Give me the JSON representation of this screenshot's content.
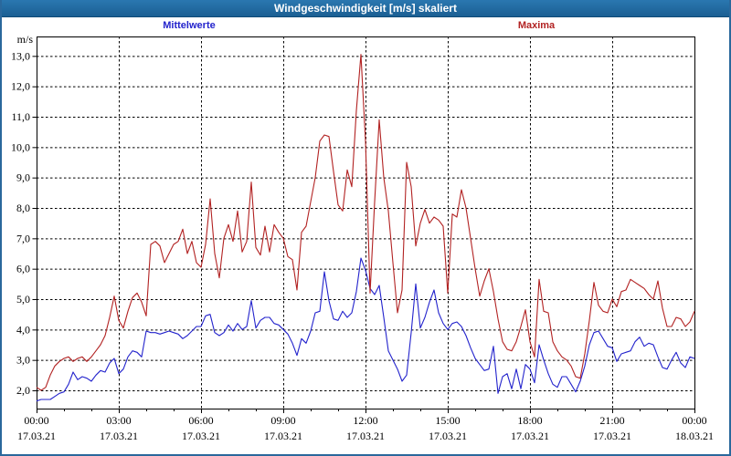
{
  "window": {
    "title": "Windgeschwindigkeit [m/s] skaliert"
  },
  "colors": {
    "titlebar_top": "#2a77b0",
    "titlebar_bottom": "#1b5f93",
    "frame": "#2a689c",
    "grid": "#000000",
    "mean_series": "#2323cc",
    "max_series": "#b22222"
  },
  "chart_data": {
    "type": "line",
    "title": "Windgeschwindigkeit [m/s] skaliert",
    "ylabel": "m/s",
    "grid": "dashed",
    "legend_position": "top",
    "ylim": [
      1.4,
      13.65
    ],
    "y_tick_values": [
      13,
      12,
      11,
      10,
      9,
      8,
      7,
      6,
      5,
      4,
      3,
      2
    ],
    "y_tick_labels": [
      "13,0",
      "12,0",
      "11,0",
      "10,0",
      "9,0",
      "8,0",
      "7,0",
      "6,0",
      "5,0",
      "4,0",
      "3,0",
      "2,0"
    ],
    "x_ticks": [
      {
        "time": "00:00",
        "date": "17.03.21"
      },
      {
        "time": "03:00",
        "date": "17.03.21"
      },
      {
        "time": "06:00",
        "date": "17.03.21"
      },
      {
        "time": "09:00",
        "date": "17.03.21"
      },
      {
        "time": "12:00",
        "date": "17.03.21"
      },
      {
        "time": "15:00",
        "date": "17.03.21"
      },
      {
        "time": "18:00",
        "date": "17.03.21"
      },
      {
        "time": "21:00",
        "date": "17.03.21"
      },
      {
        "time": "00:00",
        "date": "18.03.21"
      }
    ],
    "x_start": "00:00",
    "x_interval_minutes": 10,
    "hours_per_major_tick": 3,
    "series": [
      {
        "name": "Mittelwerte",
        "color": "#2323cc",
        "values": [
          1.65,
          1.7,
          1.7,
          1.7,
          1.8,
          1.9,
          1.95,
          2.2,
          2.6,
          2.35,
          2.45,
          2.4,
          2.3,
          2.5,
          2.65,
          2.6,
          2.9,
          3.05,
          2.55,
          2.7,
          3.1,
          3.3,
          3.25,
          3.1,
          3.95,
          3.9,
          3.9,
          3.85,
          3.9,
          3.95,
          3.9,
          3.85,
          3.7,
          3.8,
          3.95,
          4.1,
          4.1,
          4.45,
          4.5,
          3.9,
          3.8,
          3.9,
          4.15,
          3.95,
          4.2,
          4.0,
          4.1,
          4.95,
          4.05,
          4.3,
          4.4,
          4.4,
          4.2,
          4.15,
          4.0,
          3.85,
          3.55,
          3.15,
          3.7,
          3.55,
          3.95,
          4.55,
          4.6,
          5.9,
          4.95,
          4.35,
          4.3,
          4.6,
          4.4,
          4.55,
          5.25,
          6.35,
          5.95,
          5.35,
          5.15,
          5.45,
          4.4,
          3.3,
          3.0,
          2.7,
          2.3,
          2.5,
          3.9,
          5.5,
          4.05,
          4.4,
          4.9,
          5.3,
          4.55,
          4.2,
          4.0,
          4.2,
          4.25,
          4.1,
          3.8,
          3.4,
          3.05,
          2.85,
          2.65,
          2.7,
          3.45,
          1.9,
          2.45,
          2.55,
          2.05,
          2.7,
          2.05,
          2.85,
          2.7,
          2.25,
          3.5,
          3.0,
          2.55,
          2.2,
          2.1,
          2.45,
          2.45,
          2.2,
          1.95,
          2.3,
          2.8,
          3.5,
          3.9,
          3.95,
          3.7,
          3.45,
          3.4,
          2.95,
          3.2,
          3.25,
          3.3,
          3.6,
          3.75,
          3.45,
          3.55,
          3.5,
          3.1,
          2.75,
          2.7,
          3.0,
          3.25,
          2.9,
          2.75,
          3.1,
          3.05
        ]
      },
      {
        "name": "Maxima",
        "color": "#b22222",
        "values": [
          2.1,
          2.0,
          2.1,
          2.5,
          2.8,
          2.95,
          3.05,
          3.1,
          2.95,
          3.05,
          3.1,
          2.95,
          3.1,
          3.3,
          3.5,
          3.8,
          4.4,
          5.1,
          4.3,
          4.05,
          4.6,
          5.05,
          5.2,
          4.9,
          4.45,
          6.8,
          6.9,
          6.75,
          6.2,
          6.5,
          6.8,
          6.9,
          7.3,
          6.5,
          6.9,
          6.2,
          6.05,
          6.8,
          8.3,
          6.5,
          5.7,
          7.0,
          7.45,
          6.9,
          7.9,
          6.55,
          6.9,
          8.85,
          6.7,
          6.45,
          7.4,
          6.55,
          7.45,
          7.2,
          7.0,
          6.4,
          6.3,
          5.3,
          7.2,
          7.4,
          8.2,
          9.0,
          10.2,
          10.4,
          10.35,
          9.2,
          8.1,
          7.9,
          9.25,
          8.7,
          11.2,
          13.05,
          10.2,
          5.2,
          8.2,
          10.9,
          9.0,
          7.9,
          6.2,
          4.55,
          5.3,
          9.5,
          8.7,
          6.75,
          7.5,
          7.95,
          7.5,
          7.7,
          7.6,
          7.4,
          5.2,
          7.8,
          7.7,
          8.6,
          8.0,
          7.0,
          6.0,
          5.1,
          5.6,
          6.0,
          5.25,
          4.35,
          3.6,
          3.35,
          3.3,
          3.6,
          4.1,
          4.65,
          3.6,
          3.1,
          5.65,
          4.6,
          4.55,
          3.6,
          3.3,
          3.1,
          3.0,
          2.8,
          2.45,
          2.4,
          3.2,
          4.3,
          5.55,
          4.8,
          4.6,
          4.55,
          5.0,
          4.75,
          5.25,
          5.3,
          5.65,
          5.55,
          5.45,
          5.35,
          5.15,
          5.0,
          5.6,
          4.7,
          4.1,
          4.1,
          4.4,
          4.35,
          4.1,
          4.25,
          4.6
        ]
      }
    ]
  }
}
